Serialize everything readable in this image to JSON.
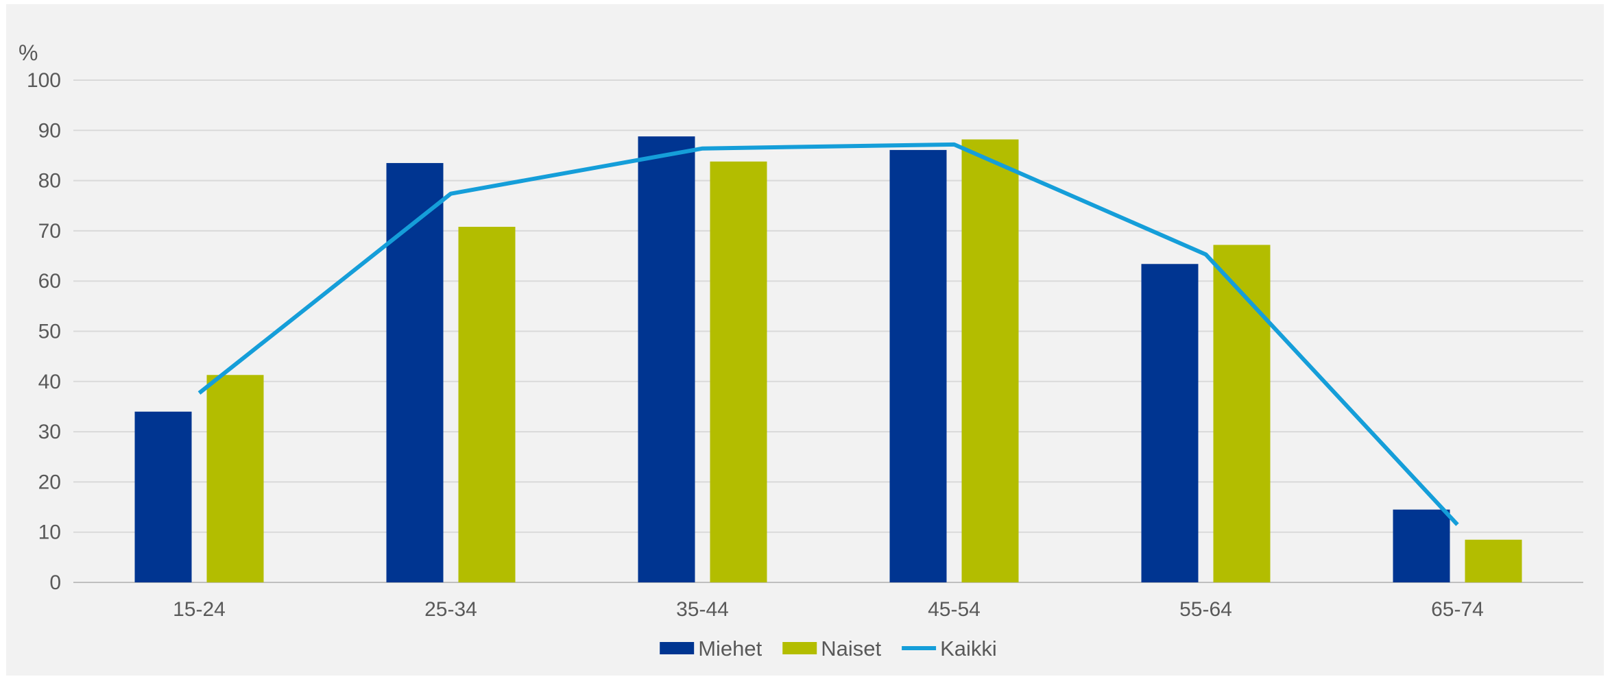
{
  "chart_data": {
    "type": "bar",
    "unit_label": "%",
    "categories": [
      "15-24",
      "25-34",
      "35-44",
      "45-54",
      "55-64",
      "65-74"
    ],
    "series": [
      {
        "name": "Miehet",
        "kind": "bar",
        "color": "#003591",
        "values": [
          34,
          83.5,
          88.8,
          86.1,
          63.4,
          14.5
        ]
      },
      {
        "name": "Naiset",
        "kind": "bar",
        "color": "#b3bd00",
        "values": [
          41.3,
          70.8,
          83.8,
          88.2,
          67.2,
          8.5
        ]
      },
      {
        "name": "Kaikki",
        "kind": "line",
        "color": "#159ed9",
        "values": [
          37.7,
          77.4,
          86.4,
          87.2,
          65.3,
          11.5
        ]
      }
    ],
    "ylim": [
      0,
      100
    ],
    "yticks": [
      0,
      10,
      20,
      30,
      40,
      50,
      60,
      70,
      80,
      90,
      100
    ],
    "grid": true,
    "legend_position": "bottom",
    "colors": {
      "background": "#f2f2f2",
      "gridline": "#d9d9d9",
      "text": "#595959"
    }
  }
}
